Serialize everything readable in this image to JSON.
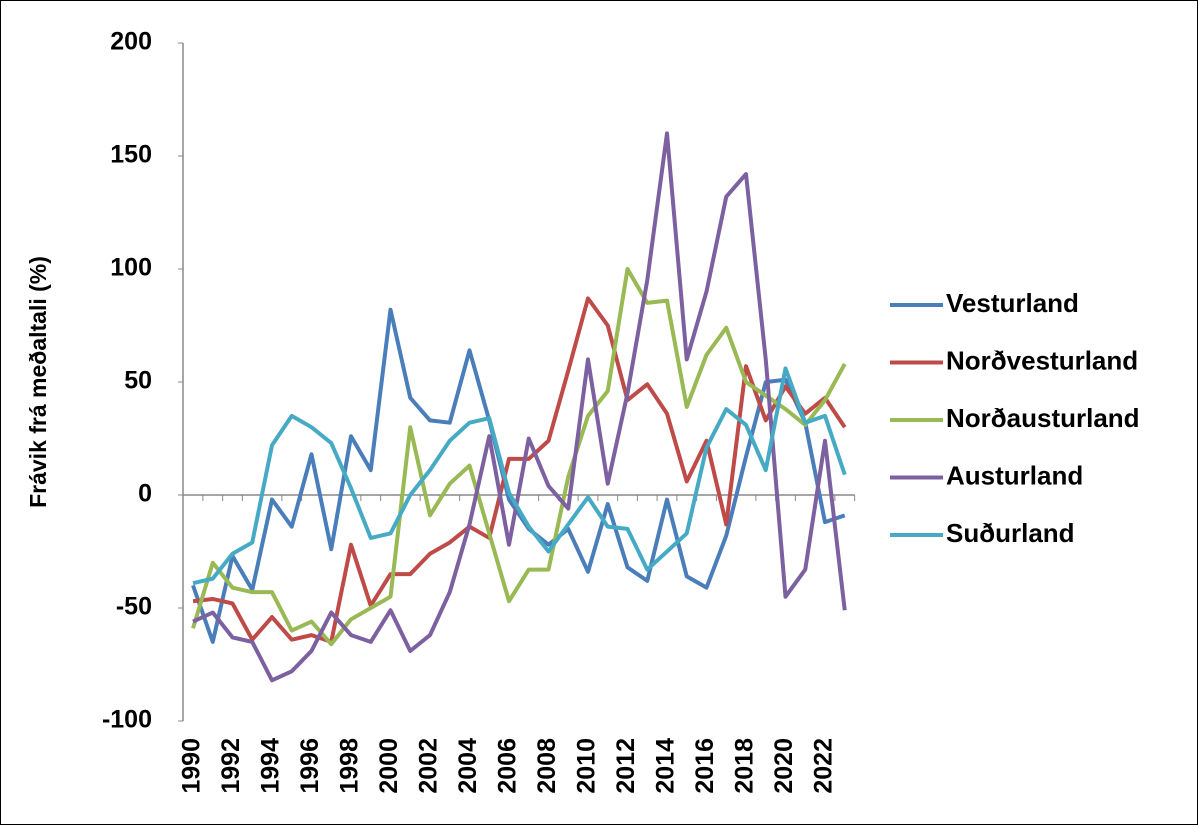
{
  "chart_data": {
    "type": "line",
    "y_label": "Frávik frá meðaltali (%)",
    "categories": [
      "1990",
      null,
      "1992",
      null,
      "1994",
      null,
      "1996",
      null,
      "1998",
      null,
      "2000",
      null,
      "2002",
      null,
      "2004",
      null,
      "2006",
      null,
      "2008",
      null,
      "2010",
      null,
      "2012",
      null,
      "2014",
      null,
      "2016",
      null,
      "2018",
      null,
      "2020",
      null,
      "2022",
      null
    ],
    "ylim": [
      -100,
      200
    ],
    "yticks": [
      -100,
      -50,
      0,
      50,
      100,
      150,
      200
    ],
    "legend": "right",
    "series": [
      {
        "name": "Vesturland",
        "color": "#4a7ebb",
        "values": [
          -40,
          -65,
          -27,
          -42,
          -2,
          -14,
          18,
          -24,
          26,
          11,
          82,
          43,
          33,
          32,
          64,
          33,
          -2,
          -15,
          -22,
          -15,
          -34,
          -4,
          -32,
          -38,
          -2,
          -36,
          -41,
          -18,
          17,
          50,
          51,
          32,
          -12,
          -9
        ]
      },
      {
        "name": "Norðvesturland",
        "color": "#be4b48",
        "values": [
          -47,
          -46,
          -48,
          -64,
          -54,
          -64,
          -62,
          -65,
          -22,
          -49,
          -35,
          -35,
          -26,
          -21,
          -14,
          -19,
          16,
          16,
          24,
          55,
          87,
          75,
          42,
          49,
          36,
          6,
          24,
          -13,
          57,
          33,
          48,
          36,
          43,
          30
        ]
      },
      {
        "name": "Norðausturland",
        "color": "#98b954",
        "values": [
          -59,
          -30,
          -41,
          -43,
          -43,
          -60,
          -56,
          -66,
          -55,
          -50,
          -45,
          30,
          -9,
          5,
          13,
          -17,
          -47,
          -33,
          -33,
          8,
          35,
          46,
          100,
          85,
          86,
          39,
          62,
          74,
          50,
          44,
          38,
          31,
          42,
          58
        ]
      },
      {
        "name": "Austurland",
        "color": "#7d60a0",
        "values": [
          -56,
          -52,
          -63,
          -65,
          -82,
          -78,
          -69,
          -52,
          -62,
          -65,
          -51,
          -69,
          -62,
          -43,
          -13,
          26,
          -22,
          25,
          4,
          -6,
          60,
          5,
          45,
          95,
          160,
          60,
          90,
          132,
          142,
          60,
          -45,
          -33,
          24,
          -51
        ]
      },
      {
        "name": "Suðurland",
        "color": "#46aac5",
        "values": [
          -39,
          -37,
          -26,
          -21,
          22,
          35,
          30,
          23,
          3,
          -19,
          -17,
          0,
          11,
          24,
          32,
          34,
          1,
          -14,
          -25,
          -13,
          -1,
          -14,
          -15,
          -33,
          -25,
          -17,
          21,
          38,
          31,
          11,
          56,
          32,
          35,
          9
        ]
      }
    ]
  }
}
